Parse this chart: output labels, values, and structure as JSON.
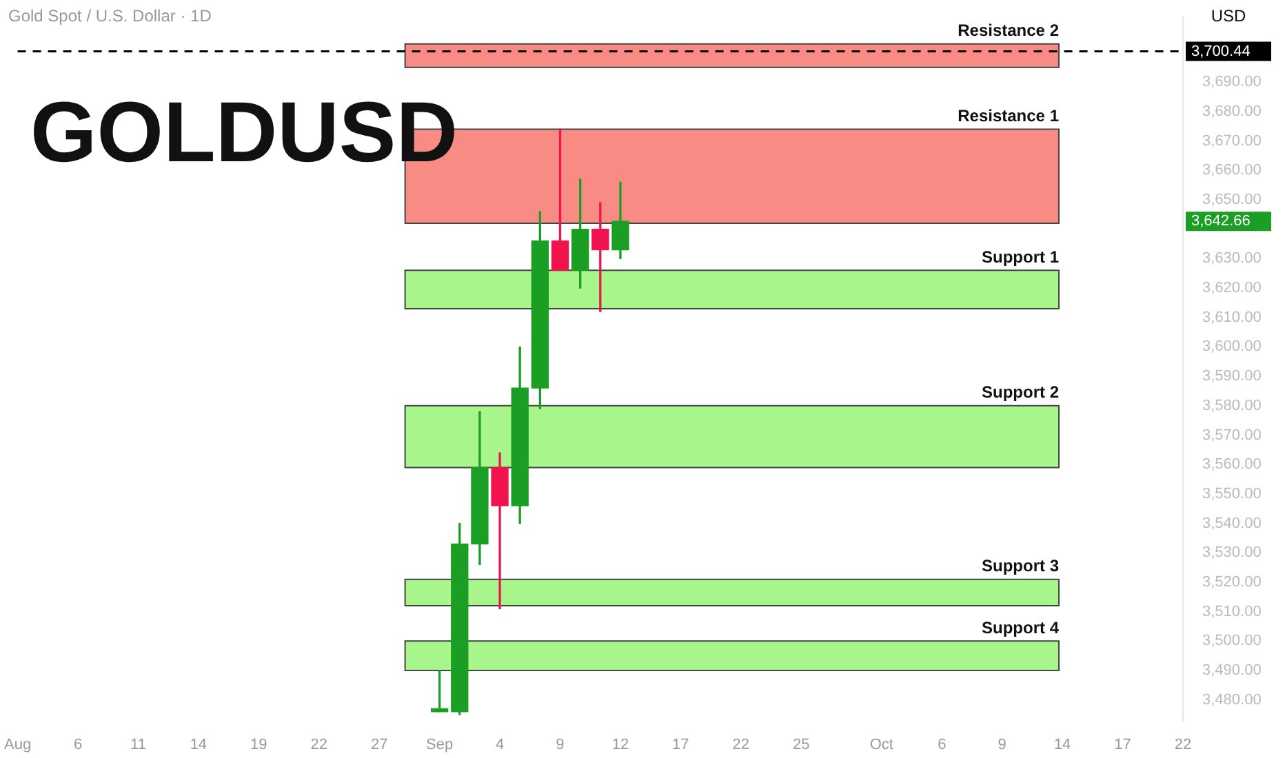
{
  "chart_data": {
    "type": "candlestick",
    "title": "GOLDUSD",
    "subtitle": "Gold Spot / U.S. Dollar · 1D",
    "ylabel": "USD",
    "categories": [
      "Aug",
      null,
      null,
      "6",
      null,
      null,
      "11",
      null,
      null,
      "14",
      null,
      null,
      "19",
      null,
      null,
      "22",
      null,
      null,
      "27",
      null,
      null,
      "Sep",
      null,
      null,
      "4",
      null,
      null,
      "9",
      null,
      null,
      "12",
      null,
      null,
      "17",
      null,
      null,
      "22",
      null,
      null,
      "25",
      null,
      null,
      null,
      "Oct",
      null,
      null,
      "6",
      null,
      null,
      "9",
      null,
      null,
      "14",
      null,
      null,
      "17",
      null,
      null,
      "22"
    ],
    "ohlc": [
      null,
      null,
      null,
      null,
      null,
      null,
      null,
      null,
      null,
      null,
      null,
      null,
      null,
      null,
      null,
      null,
      null,
      null,
      null,
      null,
      null,
      [
        3476,
        3490,
        3476,
        3477
      ],
      [
        3476,
        3540,
        3475,
        3533
      ],
      [
        3533,
        3578,
        3526,
        3559
      ],
      [
        3559,
        3564,
        3511,
        3546
      ],
      [
        3546,
        3600,
        3540,
        3586
      ],
      [
        3586,
        3646,
        3579,
        3636
      ],
      [
        3636,
        3674,
        3626,
        3626
      ],
      [
        3626,
        3657,
        3620,
        3640
      ],
      [
        3640,
        3649,
        3612,
        3633
      ],
      [
        3633,
        3656,
        3630,
        3642.66
      ],
      null,
      null,
      null,
      null,
      null,
      null,
      null,
      null,
      null,
      null,
      null,
      null,
      null,
      null,
      null,
      null,
      null,
      null,
      null,
      null,
      null,
      null,
      null,
      null,
      null,
      null,
      null,
      null
    ],
    "ylim": [
      3473,
      3712
    ],
    "yticks": [
      {
        "value": 3480,
        "label": "3,480.00"
      },
      {
        "value": 3490,
        "label": "3,490.00"
      },
      {
        "value": 3500,
        "label": "3,500.00"
      },
      {
        "value": 3510,
        "label": "3,510.00"
      },
      {
        "value": 3520,
        "label": "3,520.00"
      },
      {
        "value": 3530,
        "label": "3,530.00"
      },
      {
        "value": 3540,
        "label": "3,540.00"
      },
      {
        "value": 3550,
        "label": "3,550.00"
      },
      {
        "value": 3560,
        "label": "3,560.00"
      },
      {
        "value": 3570,
        "label": "3,570.00"
      },
      {
        "value": 3580,
        "label": "3,580.00"
      },
      {
        "value": 3590,
        "label": "3,590.00"
      },
      {
        "value": 3600,
        "label": "3,600.00"
      },
      {
        "value": 3610,
        "label": "3,610.00"
      },
      {
        "value": 3620,
        "label": "3,620.00"
      },
      {
        "value": 3630,
        "label": "3,630.00"
      },
      {
        "value": 3650,
        "label": "3,650.00"
      },
      {
        "value": 3660,
        "label": "3,660.00"
      },
      {
        "value": 3670,
        "label": "3,670.00"
      },
      {
        "value": 3680,
        "label": "3,680.00"
      },
      {
        "value": 3690,
        "label": "3,690.00"
      }
    ],
    "bands": [
      {
        "axis": "y",
        "from": 3695,
        "to": 3703,
        "label": "Resistance 2",
        "color": "#f88c85"
      },
      {
        "axis": "y",
        "from": 3642,
        "to": 3674,
        "label": "Resistance 1",
        "color": "#f88c85"
      },
      {
        "axis": "y",
        "from": 3613,
        "to": 3626,
        "label": "Support 1",
        "color": "#a8f58c"
      },
      {
        "axis": "y",
        "from": 3559,
        "to": 3580,
        "label": "Support 2",
        "color": "#a8f58c"
      },
      {
        "axis": "y",
        "from": 3512,
        "to": 3521,
        "label": "Support 3",
        "color": "#a8f58c"
      },
      {
        "axis": "y",
        "from": 3490,
        "to": 3500,
        "label": "Support 4",
        "color": "#a8f58c"
      }
    ],
    "ref_lines": [
      {
        "axis": "y",
        "value": 3700.44,
        "label": "3,700.44",
        "color": "#000000",
        "line_style": "dashed"
      }
    ],
    "annotations": [
      "3,642.66"
    ],
    "grid": false,
    "legend": false
  }
}
